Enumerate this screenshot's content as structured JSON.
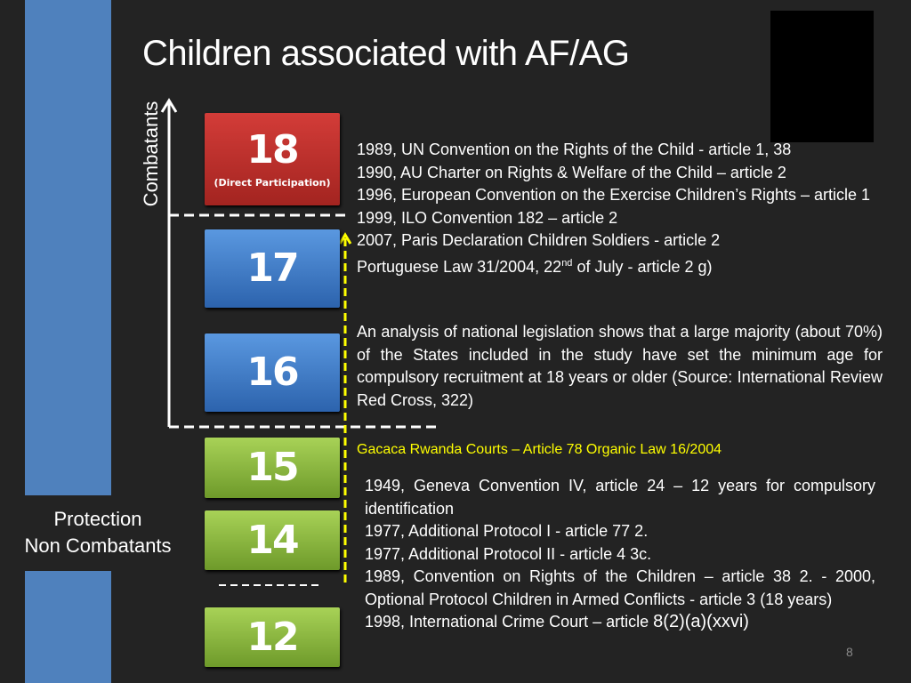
{
  "slide": {
    "title": "Children associated with AF/AG",
    "page_number": "8"
  },
  "axis": {
    "combatants_label": "Combatants",
    "protection_label_1": "Protection",
    "protection_label_2": "Non Combatants"
  },
  "age_boxes": [
    {
      "age": "18",
      "subtitle": "(Direct Participation)",
      "color": "#c0302c"
    },
    {
      "age": "17",
      "color": "#3d7ccc"
    },
    {
      "age": "16",
      "color": "#3d7ccc"
    },
    {
      "age": "15",
      "color": "#8cb83e"
    },
    {
      "age": "14",
      "color": "#8cb83e"
    },
    {
      "age": "12",
      "color": "#8cb83e"
    }
  ],
  "combatant_refs": [
    "1989, UN Convention on the Rights of the Child - article 1, 38",
    "1990,  AU Charter on Rights & Welfare of the Child – article 2",
    "1996, European Convention on the Exercise Children’s Rights – article 1",
    "1999, ILO Convention 182 – article 2",
    "2007, Paris Declaration Children Soldiers - article 2"
  ],
  "portuguese_law": {
    "text": "Portuguese Law 31/2004, 22",
    "sup": "nd",
    "rest": " of July - article 2 g)"
  },
  "analysis": "An analysis of national legislation shows that a large majority (about 70%) of the States included in the study have set the minimum age for compulsory recruitment at 18 years or older (Source: International Review Red Cross, 322)",
  "gacaca": {
    "text": "Gacaca Rwanda Courts –  Article 78 Organic Law 16/2004",
    "color": "#ffff00"
  },
  "protection_refs": [
    "1949, Geneva Convention IV, article 24 – 12 years  for compulsory identification",
    "1977, Additional Protocol I - article 77 2.",
    "1977, Additional Protocol II - article 4 3c.",
    "1989, Convention on Rights of the Children – article 38 2. - 2000, Optional Protocol Children in Armed Conflicts - article 3 (18 years)"
  ],
  "icc": {
    "text": "1998, International Crime Court – article ",
    "article": "8(2)(a)(xxvi)"
  }
}
